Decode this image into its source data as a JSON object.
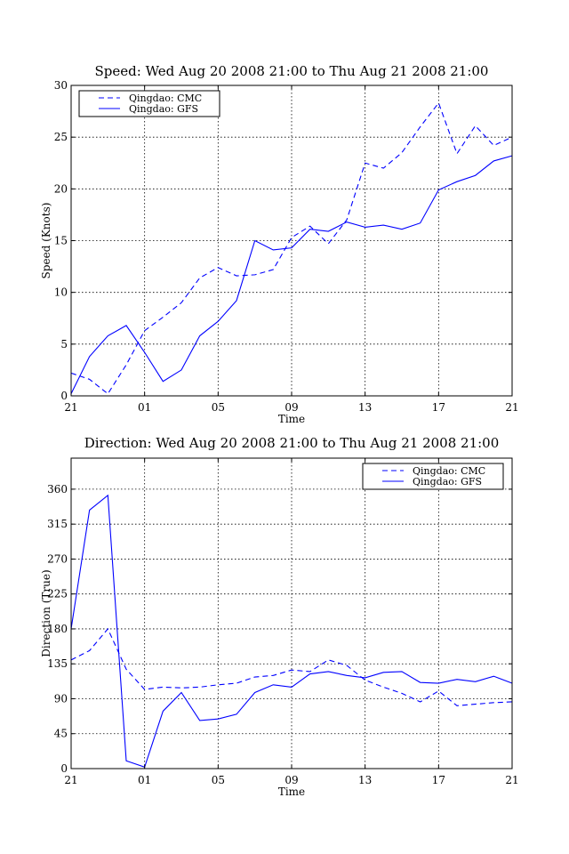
{
  "chart_data": [
    {
      "type": "line",
      "title": "Speed: Wed Aug 20 2008 21:00 to Thu Aug 21 2008 21:00",
      "xlabel": "Time",
      "ylabel": "Speed (Knots)",
      "xlim": [
        0,
        24
      ],
      "ylim": [
        0,
        30
      ],
      "xticks": [
        0,
        4,
        8,
        12,
        16,
        20,
        24
      ],
      "xtick_labels": [
        "21",
        "01",
        "05",
        "09",
        "13",
        "17",
        "21"
      ],
      "yticks": [
        0,
        5,
        10,
        15,
        20,
        25,
        30
      ],
      "ytick_labels": [
        "0",
        "5",
        "10",
        "15",
        "20",
        "25",
        "30"
      ],
      "grid": true,
      "legend_position": "upper-left",
      "series": [
        {
          "name": "Qingdao: CMC",
          "style": "dashed",
          "color": "#0000ff",
          "x": [
            0,
            1,
            2,
            3,
            4,
            5,
            6,
            7,
            8,
            9,
            10,
            11,
            12,
            13,
            14,
            15,
            16,
            17,
            18,
            19,
            20,
            21,
            22,
            23,
            24
          ],
          "y": [
            2.2,
            1.6,
            0.2,
            3.0,
            6.3,
            7.6,
            9.0,
            11.4,
            12.4,
            11.6,
            11.7,
            12.2,
            15.3,
            16.4,
            14.7,
            17.0,
            22.5,
            22.0,
            23.5,
            26.0,
            28.3,
            23.4,
            26.1,
            24.2,
            25.0
          ]
        },
        {
          "name": "Qingdao: GFS",
          "style": "solid",
          "color": "#0000ff",
          "x": [
            0,
            1,
            2,
            3,
            4,
            5,
            6,
            7,
            8,
            9,
            10,
            11,
            12,
            13,
            14,
            15,
            16,
            17,
            18,
            19,
            20,
            21,
            22,
            23,
            24
          ],
          "y": [
            0.2,
            3.8,
            5.8,
            6.8,
            4.2,
            1.4,
            2.5,
            5.8,
            7.2,
            9.2,
            15.0,
            14.1,
            14.3,
            16.1,
            15.9,
            16.8,
            16.3,
            16.5,
            16.1,
            16.7,
            19.9,
            20.7,
            21.3,
            22.7,
            23.2
          ]
        }
      ]
    },
    {
      "type": "line",
      "title": "Direction: Wed Aug 20 2008 21:00 to Thu Aug 21 2008 21:00",
      "xlabel": "Time",
      "ylabel": "Direction (True)",
      "xlim": [
        0,
        24
      ],
      "ylim": [
        0,
        400
      ],
      "xticks": [
        0,
        4,
        8,
        12,
        16,
        20,
        24
      ],
      "xtick_labels": [
        "21",
        "01",
        "05",
        "09",
        "13",
        "17",
        "21"
      ],
      "yticks": [
        0,
        45,
        90,
        135,
        180,
        225,
        270,
        315,
        360
      ],
      "ytick_labels": [
        "0",
        "45",
        "90",
        "135",
        "180",
        "225",
        "270",
        "315",
        "360"
      ],
      "grid": true,
      "legend_position": "upper-right",
      "series": [
        {
          "name": "Qingdao: CMC",
          "style": "dashed",
          "color": "#0000ff",
          "x": [
            0,
            1,
            2,
            3,
            4,
            5,
            6,
            7,
            8,
            9,
            10,
            11,
            12,
            13,
            14,
            15,
            16,
            17,
            18,
            19,
            20,
            21,
            22,
            23,
            24
          ],
          "y": [
            140,
            152,
            180,
            128,
            102,
            105,
            104,
            105,
            108,
            110,
            118,
            120,
            127,
            125,
            140,
            133,
            114,
            105,
            97,
            86,
            100,
            81,
            83,
            85,
            86
          ]
        },
        {
          "name": "Qingdao: GFS",
          "style": "solid",
          "color": "#0000ff",
          "x": [
            0,
            1,
            2,
            3,
            4,
            5,
            6,
            7,
            8,
            9,
            10,
            11,
            12,
            13,
            14,
            15,
            16,
            17,
            18,
            19,
            20,
            21,
            22,
            23,
            24
          ],
          "y": [
            180,
            333,
            352,
            10,
            2,
            74,
            98,
            62,
            64,
            70,
            98,
            108,
            105,
            122,
            125,
            120,
            117,
            124,
            125,
            111,
            110,
            115,
            112,
            119,
            110
          ]
        }
      ]
    }
  ]
}
